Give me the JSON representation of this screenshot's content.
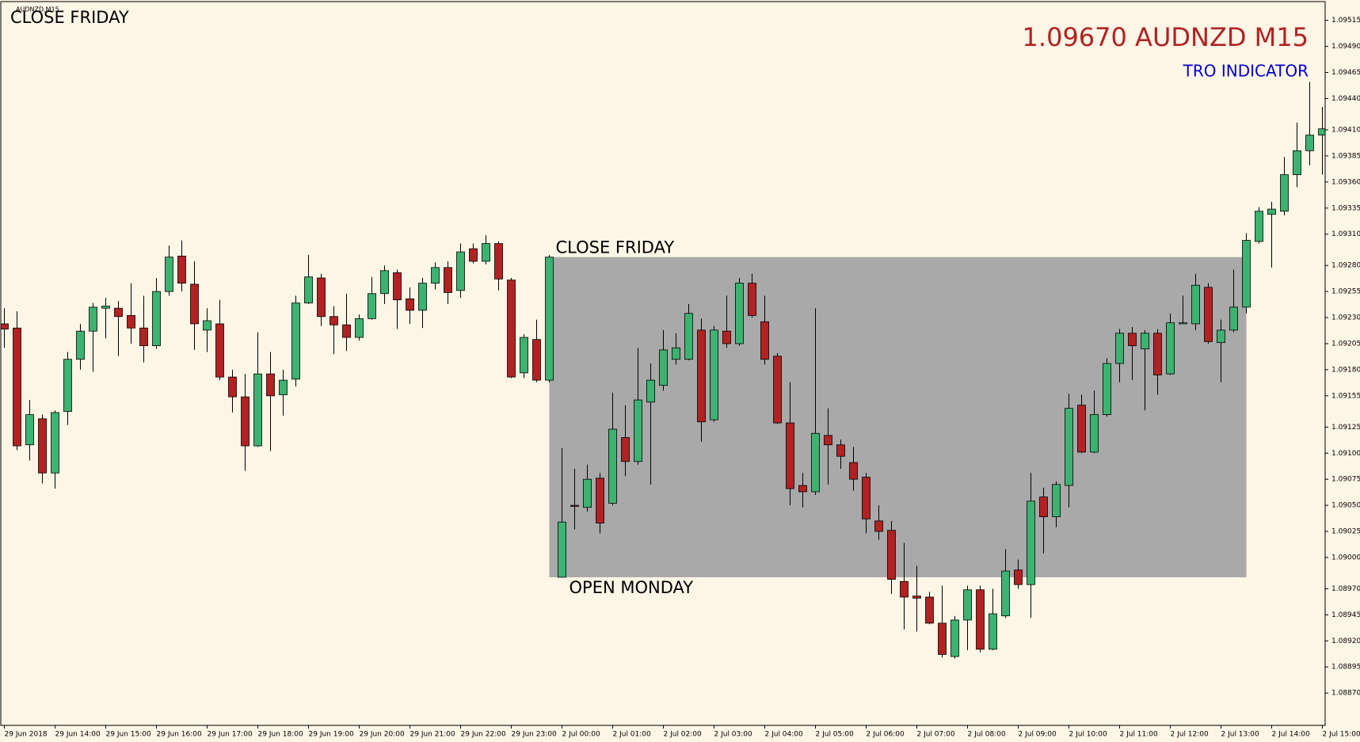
{
  "chart_data": {
    "type": "candlestick",
    "symbol": "AUDNZD,M15",
    "annotations": {
      "top_left": "CLOSE FRIDAY",
      "price_title": "1.09670 AUDNZD M15",
      "indicator": "TRO INDICATOR",
      "close_friday": "CLOSE FRIDAY",
      "open_monday": "OPEN MONDAY"
    },
    "colors": {
      "up": "#3cb371",
      "down": "#b22222",
      "range_box": "#a9a9a9"
    },
    "categories": [
      "29 Jun 2018",
      null,
      null,
      null,
      "29 Jun 14:00",
      null,
      null,
      null,
      "29 Jun 15:00",
      null,
      null,
      null,
      "29 Jun 16:00",
      null,
      null,
      null,
      "29 Jun 17:00",
      null,
      null,
      null,
      "29 Jun 18:00",
      null,
      null,
      null,
      "29 Jun 19:00",
      null,
      null,
      null,
      "29 Jun 20:00",
      null,
      null,
      null,
      "29 Jun 21:00",
      null,
      null,
      null,
      "29 Jun 22:00",
      null,
      null,
      null,
      "29 Jun 23:00",
      null,
      null,
      null,
      "2 Jul 00:00",
      null,
      null,
      null,
      "2 Jul 01:00",
      null,
      null,
      null,
      "2 Jul 02:00",
      null,
      null,
      null,
      "2 Jul 03:00",
      null,
      null,
      null,
      "2 Jul 04:00",
      null,
      null,
      null,
      "2 Jul 05:00",
      null,
      null,
      null,
      "2 Jul 06:00",
      null,
      null,
      null,
      "2 Jul 07:00",
      null,
      null,
      null,
      "2 Jul 08:00",
      null,
      null,
      null,
      "2 Jul 09:00",
      null,
      null,
      null,
      "2 Jul 10:00",
      null,
      null,
      null,
      "2 Jul 11:00",
      null,
      null,
      null,
      "2 Jul 12:00",
      null,
      null,
      null,
      "2 Jul 13:00",
      null,
      null,
      null,
      "2 Jul 14:00",
      null,
      null,
      null,
      "2 Jul 15:00"
    ],
    "open": [
      1.09224,
      1.0922,
      1.09108,
      1.09133,
      1.09081,
      1.0914,
      1.0919,
      1.09217,
      1.09239,
      1.09239,
      1.09232,
      1.0922,
      1.09203,
      1.09255,
      1.09289,
      1.09262,
      1.09218,
      1.09224,
      1.09173,
      1.09154,
      1.09107,
      1.09176,
      1.09156,
      1.09171,
      1.09244,
      1.09268,
      1.09231,
      1.09223,
      1.09211,
      1.09229,
      1.09253,
      1.09273,
      1.09248,
      1.09237,
      1.09263,
      1.09278,
      1.09256,
      1.09296,
      1.09284,
      1.09301,
      1.09266,
      1.09177,
      1.09209,
      1.0917,
      1.08981,
      1.0905,
      1.09048,
      1.09076,
      1.09052,
      1.09115,
      1.09092,
      1.09149,
      1.09165,
      1.0919,
      1.0919,
      1.09218,
      1.09132,
      1.09217,
      1.09205,
      1.09263,
      1.09226,
      1.09193,
      1.09129,
      1.09069,
      1.09063,
      1.09117,
      1.09108,
      1.09091,
      1.09077,
      1.09035,
      1.09026,
      1.08977,
      1.08963,
      1.08962,
      1.08937,
      1.08905,
      1.0894,
      1.08969,
      1.08912,
      1.08944,
      1.08988,
      1.08974,
      1.09058,
      1.09039,
      1.09069,
      1.09146,
      1.09101,
      1.09137,
      1.09186,
      1.09215,
      1.092,
      1.09215,
      1.09176,
      1.09224,
      1.09224,
      1.09259,
      1.09206,
      1.09218,
      1.0924,
      1.09303,
      1.09329,
      1.09332,
      1.09367,
      1.0939,
      1.09405
    ],
    "high": [
      1.09239,
      1.09236,
      1.09151,
      1.09137,
      1.09141,
      1.09197,
      1.09224,
      1.09244,
      1.09249,
      1.09246,
      1.09263,
      1.09251,
      1.09268,
      1.09299,
      1.09304,
      1.09284,
      1.09239,
      1.09247,
      1.0918,
      1.09176,
      1.09216,
      1.09197,
      1.0918,
      1.09251,
      1.0929,
      1.09272,
      1.09241,
      1.09253,
      1.09233,
      1.09269,
      1.0928,
      1.09276,
      1.09259,
      1.09268,
      1.09283,
      1.09284,
      1.09301,
      1.09301,
      1.09309,
      1.09303,
      1.09268,
      1.09214,
      1.09228,
      1.0929,
      1.09105,
      1.09085,
      1.09089,
      1.09081,
      1.09158,
      1.09146,
      1.09201,
      1.09186,
      1.09218,
      1.09215,
      1.09243,
      1.09229,
      1.09222,
      1.09251,
      1.09268,
      1.09272,
      1.09251,
      1.09196,
      1.09168,
      1.09081,
      1.09239,
      1.09143,
      1.09113,
      1.09106,
      1.09081,
      1.0905,
      1.09035,
      1.09014,
      1.08992,
      1.08967,
      1.08973,
      1.08944,
      1.08973,
      1.08973,
      1.0897,
      1.09008,
      1.08998,
      1.09081,
      1.09067,
      1.09073,
      1.09157,
      1.09156,
      1.0916,
      1.09191,
      1.09219,
      1.09221,
      1.09218,
      1.09219,
      1.09234,
      1.09251,
      1.09272,
      1.09263,
      1.09228,
      1.09276,
      1.09311,
      1.09336,
      1.09341,
      1.09384,
      1.09417,
      1.09456,
      1.09432
    ],
    "low": [
      1.09201,
      1.09103,
      1.09093,
      1.09071,
      1.09066,
      1.09127,
      1.0918,
      1.09178,
      1.0921,
      1.09193,
      1.09205,
      1.09187,
      1.092,
      1.09251,
      1.09255,
      1.09199,
      1.09197,
      1.0917,
      1.09139,
      1.09083,
      1.09106,
      1.09102,
      1.09136,
      1.09164,
      1.09243,
      1.09222,
      1.09195,
      1.09198,
      1.09208,
      1.09228,
      1.09243,
      1.09219,
      1.09224,
      1.0922,
      1.09257,
      1.09243,
      1.09249,
      1.09282,
      1.09281,
      1.09256,
      1.09172,
      1.09172,
      1.09168,
      1.09168,
      1.08981,
      1.09027,
      1.09044,
      1.09023,
      1.0905,
      1.09078,
      1.09089,
      1.0907,
      1.0916,
      1.09185,
      1.09189,
      1.09111,
      1.0913,
      1.09201,
      1.09203,
      1.0923,
      1.09185,
      1.09128,
      1.0905,
      1.09048,
      1.0906,
      1.0907,
      1.09085,
      1.09064,
      1.09023,
      1.09017,
      1.08965,
      1.08931,
      1.08929,
      1.08936,
      1.08904,
      1.08903,
      1.08911,
      1.08909,
      1.08911,
      1.08942,
      1.0897,
      1.08942,
      1.09004,
      1.09029,
      1.09048,
      1.091,
      1.091,
      1.09135,
      1.09168,
      1.0917,
      1.09141,
      1.09156,
      1.09175,
      1.09224,
      1.09218,
      1.09205,
      1.09168,
      1.09216,
      1.09234,
      1.09301,
      1.09278,
      1.09328,
      1.09355,
      1.09376,
      1.09367
    ],
    "close": [
      1.09219,
      1.09107,
      1.09137,
      1.09081,
      1.09139,
      1.0919,
      1.09217,
      1.0924,
      1.09241,
      1.09231,
      1.0922,
      1.09203,
      1.09255,
      1.09288,
      1.09263,
      1.09224,
      1.09227,
      1.09173,
      1.09154,
      1.09107,
      1.09176,
      1.09155,
      1.0917,
      1.09244,
      1.09269,
      1.09231,
      1.09223,
      1.09211,
      1.09229,
      1.09253,
      1.09275,
      1.09247,
      1.09237,
      1.09263,
      1.09278,
      1.09254,
      1.09293,
      1.09284,
      1.09301,
      1.09267,
      1.09173,
      1.09211,
      1.0917,
      1.09288,
      1.09034,
      1.09049,
      1.09075,
      1.09033,
      1.09123,
      1.09092,
      1.09151,
      1.0917,
      1.09199,
      1.09201,
      1.09234,
      1.0913,
      1.09218,
      1.09205,
      1.09263,
      1.09232,
      1.0919,
      1.09129,
      1.09066,
      1.09063,
      1.09119,
      1.09108,
      1.09097,
      1.09075,
      1.09037,
      1.09025,
      1.08979,
      1.08962,
      1.08961,
      1.08937,
      1.08907,
      1.0894,
      1.08969,
      1.08912,
      1.08946,
      1.08987,
      1.08974,
      1.09054,
      1.09039,
      1.0907,
      1.09143,
      1.09101,
      1.09137,
      1.09186,
      1.09215,
      1.09203,
      1.09215,
      1.09175,
      1.09225,
      1.09225,
      1.09261,
      1.09207,
      1.09218,
      1.0924,
      1.09304,
      1.09332,
      1.09334,
      1.09367,
      1.0939,
      1.09405,
      1.09411
    ],
    "ylim": [
      1.08839,
      1.09533
    ],
    "yticks": [
      1.09515,
      {
        "value": 1.0949,
        "label": "1.09490"
      },
      1.09465,
      {
        "value": 1.0944,
        "label": "1.09440"
      },
      {
        "value": 1.0941,
        "label": "1.09410"
      },
      1.09385,
      {
        "value": 1.0936,
        "label": "1.09360"
      },
      1.09335,
      {
        "value": 1.0931,
        "label": "1.09310"
      },
      {
        "value": 1.0928,
        "label": "1.09280"
      },
      1.09255,
      {
        "value": 1.0923,
        "label": "1.09230"
      },
      1.09205,
      {
        "value": 1.0918,
        "label": "1.09180"
      },
      1.09155,
      1.09125,
      {
        "value": 1.091,
        "label": "1.09100"
      },
      1.09075,
      {
        "value": 1.0905,
        "label": "1.09050"
      },
      1.09025,
      {
        "value": 1.09,
        "label": "1.09000"
      },
      {
        "value": 1.0897,
        "label": "1.08970"
      },
      1.08945,
      {
        "value": 1.0892,
        "label": "1.08920"
      },
      1.08895,
      {
        "value": 1.0887,
        "label": "1.08870"
      }
    ],
    "grid": false
  }
}
